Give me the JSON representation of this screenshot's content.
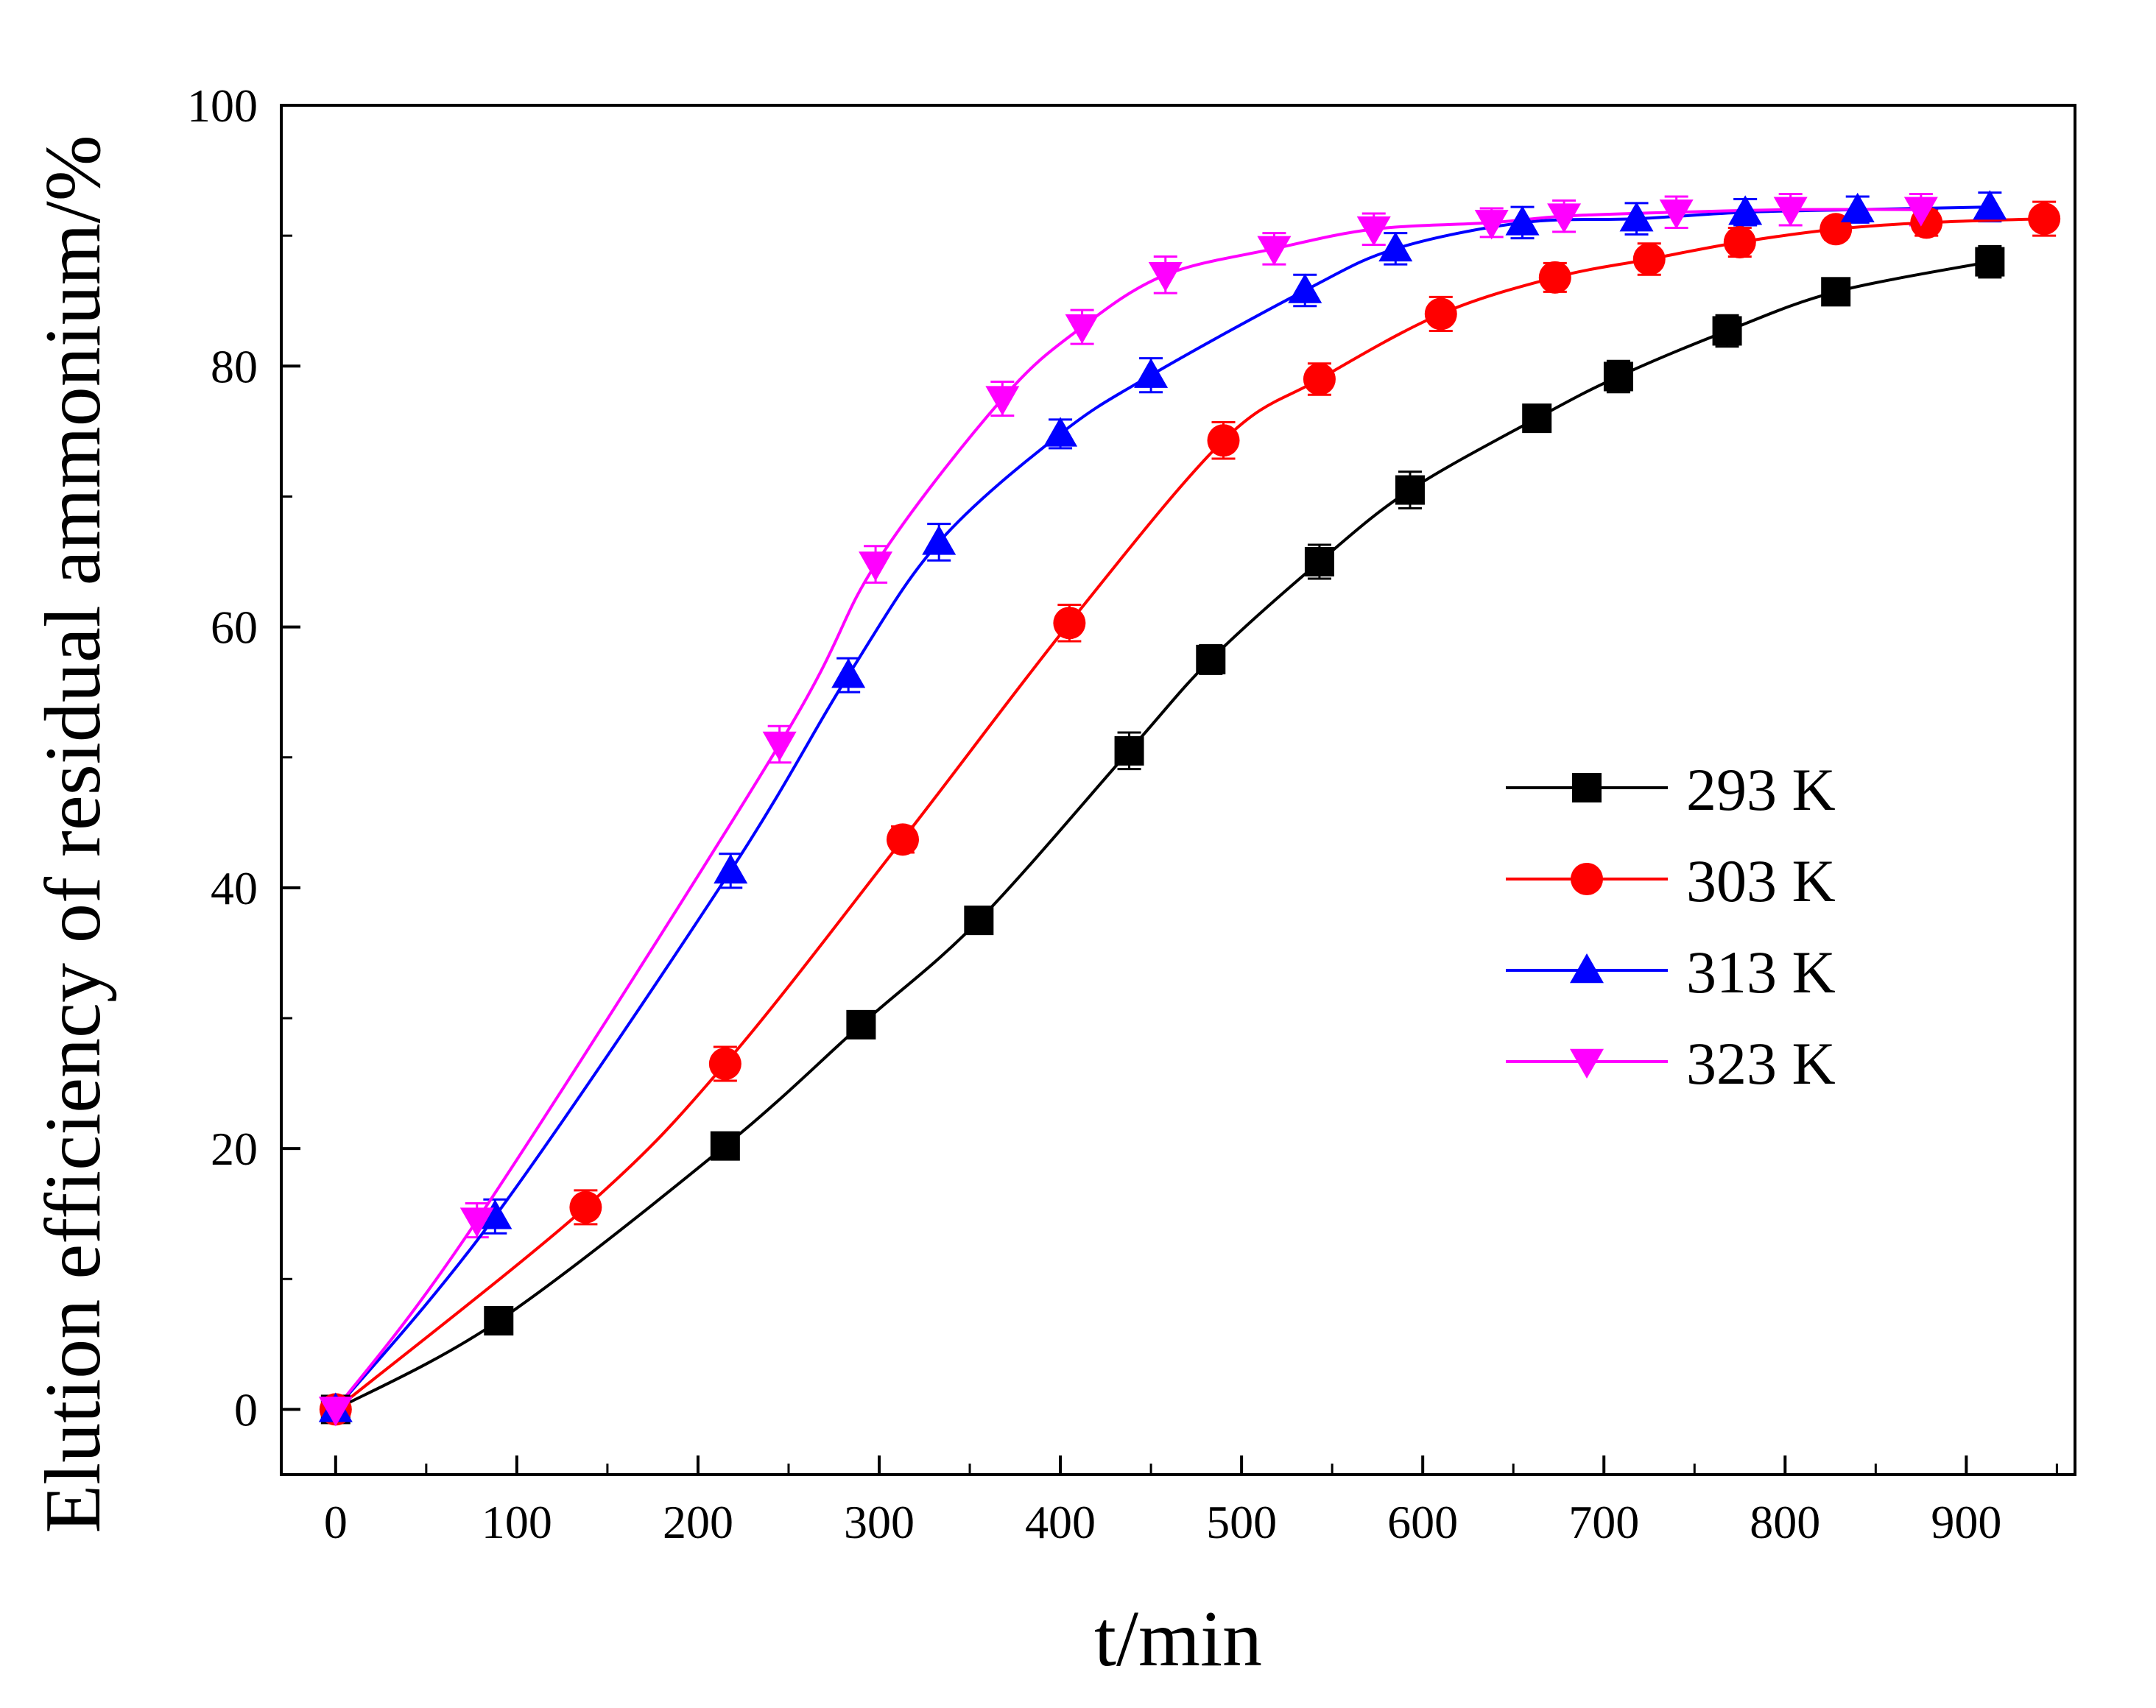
{
  "chart_data": {
    "type": "line",
    "title": "",
    "xlabel": "t/min",
    "ylabel": "Elution efficiency of residual ammonium/%",
    "xlim": [
      -30,
      960
    ],
    "ylim": [
      -5,
      100
    ],
    "xticks": [
      0,
      100,
      200,
      300,
      400,
      500,
      600,
      700,
      800,
      900
    ],
    "yticks": [
      0,
      20,
      40,
      60,
      80,
      100
    ],
    "xtick_labels": [
      "0",
      "100",
      "200",
      "300",
      "400",
      "500",
      "600",
      "700",
      "800",
      "900"
    ],
    "ytick_labels": [
      "0",
      "20",
      "40",
      "60",
      "80",
      "100"
    ],
    "legend_position": "right-center",
    "series": [
      {
        "name": "293 K",
        "label": "293 K",
        "color": "#000000",
        "marker": "square",
        "x": [
          0,
          90,
          215,
          290,
          355,
          438,
          483,
          543,
          593,
          663,
          708,
          768,
          828,
          913
        ],
        "y": [
          0,
          6.8,
          20.2,
          29.5,
          37.5,
          50.5,
          57.5,
          65.0,
          70.5,
          76.0,
          79.2,
          82.7,
          85.7,
          88.0
        ],
        "yerr": [
          0.8,
          0.8,
          1.0,
          0.8,
          1.0,
          1.4,
          1.1,
          1.3,
          1.4,
          0.8,
          1.2,
          1.2,
          0.9,
          1.2
        ]
      },
      {
        "name": "303 K",
        "label": "303 K",
        "color": "#ff0000",
        "marker": "circle",
        "x": [
          0,
          138,
          215,
          313,
          405,
          490,
          543,
          610,
          673,
          725,
          775,
          828,
          878,
          943
        ],
        "y": [
          0,
          15.5,
          26.5,
          43.7,
          60.3,
          74.3,
          79.0,
          84.0,
          86.8,
          88.2,
          89.5,
          90.5,
          91.0,
          91.3
        ],
        "yerr": [
          0.8,
          1.3,
          1.3,
          1.0,
          1.4,
          1.4,
          1.2,
          1.3,
          1.1,
          1.2,
          1.1,
          0.8,
          1.0,
          1.3
        ]
      },
      {
        "name": "313 K",
        "label": "313 K",
        "color": "#0000ff",
        "marker": "triangle-up",
        "x": [
          0,
          88,
          218,
          283,
          333,
          400,
          450,
          535,
          585,
          655,
          718,
          778,
          840,
          913
        ],
        "y": [
          0,
          14.8,
          41.3,
          56.3,
          66.5,
          74.8,
          79.3,
          85.8,
          89.0,
          91.0,
          91.3,
          91.8,
          92.0,
          92.2
        ],
        "yerr": [
          0.7,
          1.3,
          1.3,
          1.3,
          1.4,
          1.1,
          1.3,
          1.2,
          1.2,
          1.2,
          1.2,
          1.0,
          1.0,
          1.1
        ]
      },
      {
        "name": "323 K",
        "label": "323 K",
        "color": "#ff00ff",
        "marker": "triangle-down",
        "x": [
          0,
          78,
          245,
          298,
          368,
          412,
          458,
          518,
          573,
          638,
          678,
          740,
          803,
          875
        ],
        "y": [
          0,
          14.5,
          51.0,
          64.8,
          77.5,
          83.0,
          87.0,
          89.0,
          90.5,
          91.0,
          91.5,
          91.8,
          92.0,
          92.0
        ],
        "yerr": [
          0.8,
          1.3,
          1.4,
          1.4,
          1.3,
          1.3,
          1.4,
          1.2,
          1.2,
          1.1,
          1.2,
          1.2,
          1.2,
          1.2
        ]
      }
    ]
  }
}
